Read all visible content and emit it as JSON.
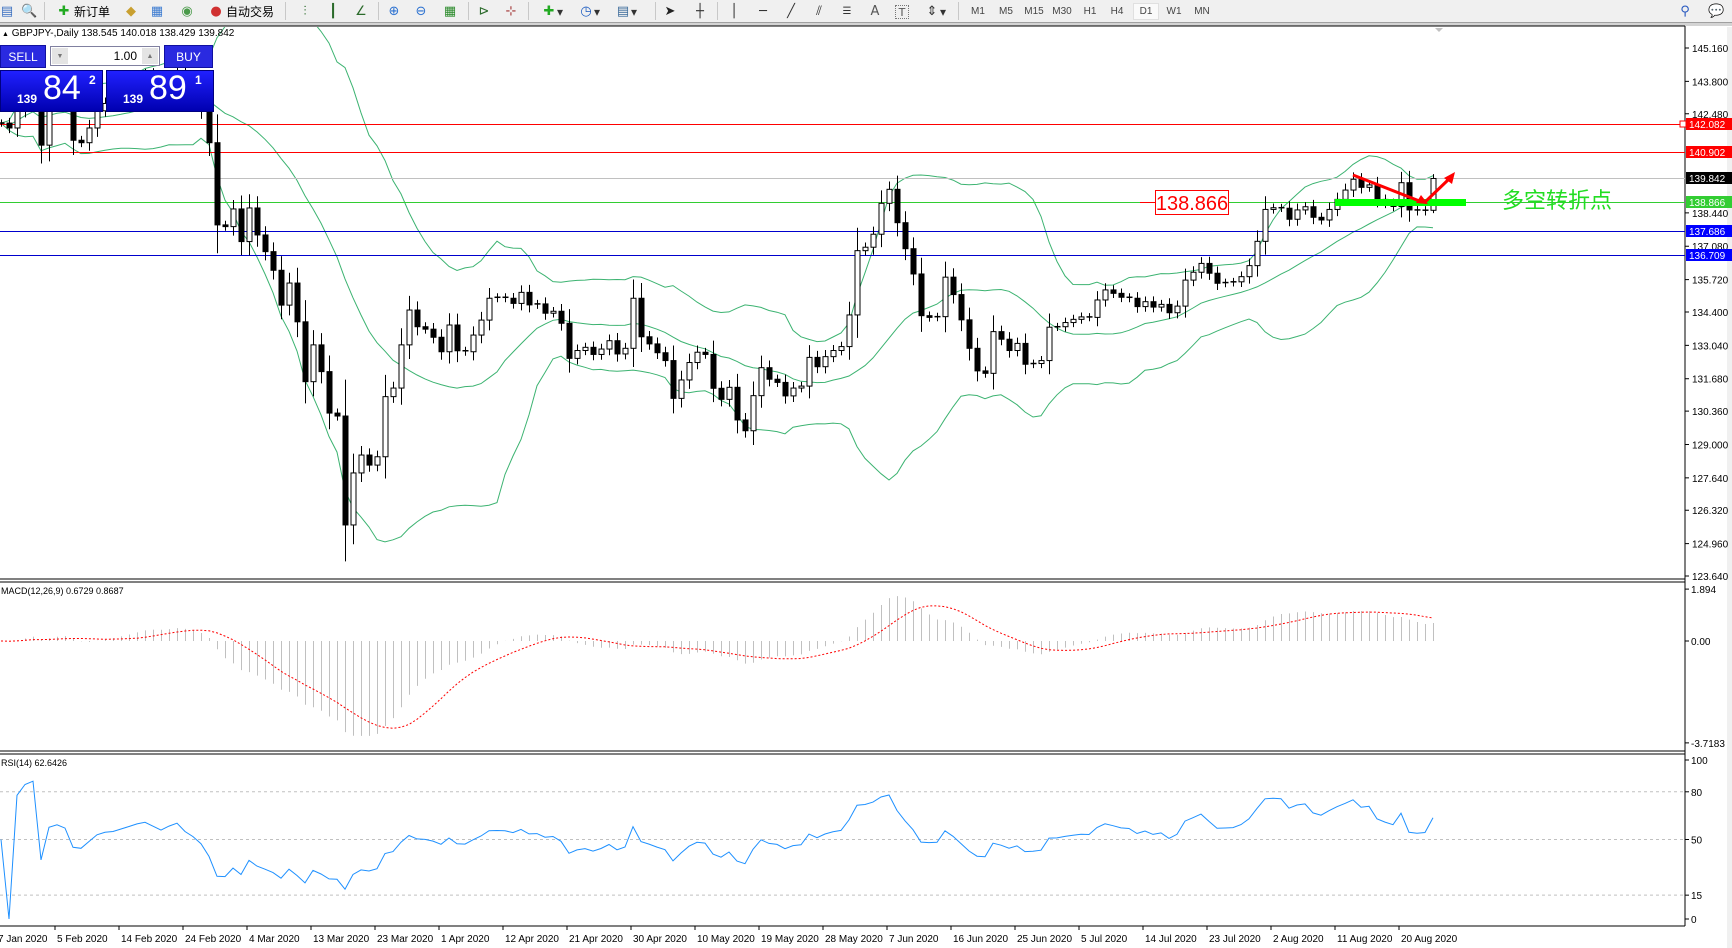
{
  "toolbar": {
    "new_order": "新订单",
    "auto_trading": "自动交易",
    "timeframes": [
      "M1",
      "M5",
      "M15",
      "M30",
      "H1",
      "H4",
      "D1",
      "W1",
      "MN"
    ],
    "active_timeframe": "D1",
    "icons": [
      "new-chart-icon",
      "profiles-icon",
      "new-order-icon",
      "metaeditor-icon",
      "terminal-icon",
      "signals-icon",
      "auto-trading-icon",
      "bar-chart-icon",
      "candlestick-icon",
      "line-chart-icon",
      "zoom-in-icon",
      "zoom-out-icon",
      "tile-windows-icon",
      "autoscroll-icon",
      "chart-shift-icon",
      "indicators-icon",
      "periods-icon",
      "templates-icon",
      "cursor-icon",
      "crosshair-icon",
      "vertical-line-icon",
      "horizontal-line-icon",
      "trendline-icon",
      "equidistant-channel-icon",
      "fibonacci-icon",
      "text-icon",
      "text-label-icon",
      "arrows-icon",
      "search-icon",
      "chat-icon"
    ]
  },
  "chart_header": {
    "symbol": "GBPJPY-,Daily",
    "open": "138.545",
    "high": "140.018",
    "low": "138.429",
    "close": "139.842"
  },
  "trade_panel": {
    "sell_label": "SELL",
    "buy_label": "BUY",
    "lot": "1.00",
    "sell_price": {
      "prefix": "139",
      "pips": "84",
      "fraction": "2"
    },
    "buy_price": {
      "prefix": "139",
      "pips": "89",
      "fraction": "1"
    }
  },
  "chart_data": {
    "type": "candlestick",
    "symbol": "GBPJPY",
    "timeframe": "Daily",
    "close": [
      142.1,
      141.9,
      142.6,
      143.0,
      143.2,
      141.2,
      142.9,
      143.1,
      142.9,
      141.4,
      141.3,
      141.9,
      142.6,
      142.9,
      143.0,
      143.3,
      143.6,
      143.9,
      144.1,
      143.8,
      143.5,
      143.9,
      144.2,
      143.6,
      143.2,
      142.6,
      141.3,
      137.95,
      137.88,
      138.6,
      137.27,
      138.64,
      137.54,
      136.86,
      136.1,
      134.68,
      135.58,
      134.0,
      131.56,
      133.06,
      131.97,
      130.28,
      130.16,
      125.72,
      127.84,
      128.57,
      128.16,
      128.5,
      130.95,
      131.3,
      133.06,
      134.48,
      133.8,
      133.7,
      133.37,
      132.78,
      133.87,
      132.82,
      132.78,
      133.46,
      134.07,
      134.96,
      135.0,
      134.96,
      134.75,
      135.2,
      134.69,
      134.73,
      134.35,
      134.43,
      133.94,
      132.51,
      132.83,
      132.96,
      132.67,
      132.89,
      133.23,
      132.69,
      132.92,
      134.96,
      133.39,
      133.1,
      132.74,
      132.42,
      130.88,
      131.63,
      132.34,
      132.76,
      132.67,
      131.29,
      130.84,
      131.33,
      130.0,
      129.56,
      130.99,
      132.13,
      131.66,
      131.53,
      130.98,
      131.3,
      131.38,
      132.55,
      132.17,
      132.58,
      132.83,
      132.99,
      134.28,
      136.9,
      137.04,
      137.57,
      138.83,
      139.4,
      138.04,
      136.98,
      135.95,
      134.25,
      134.18,
      134.21,
      135.82,
      135.11,
      134.08,
      132.92,
      132.0,
      131.9,
      133.6,
      133.29,
      132.83,
      133.12,
      132.27,
      132.3,
      132.42,
      133.78,
      133.8,
      133.97,
      134.1,
      134.2,
      134.18,
      134.89,
      135.3,
      135.16,
      135.0,
      134.96,
      134.62,
      134.82,
      134.6,
      134.71,
      134.37,
      134.64,
      135.7,
      136.02,
      136.38,
      135.98,
      135.57,
      135.6,
      135.63,
      135.84,
      136.29,
      137.28,
      138.58,
      138.65,
      138.63,
      138.18,
      138.56,
      138.69,
      138.26,
      138.15,
      138.58,
      138.99,
      139.37,
      139.81,
      139.48,
      139.58,
      138.99,
      138.83,
      138.7,
      139.67,
      138.56,
      138.5,
      138.55,
      139.842
    ],
    "price_axis_ticks": [
      "145.160",
      "143.800",
      "142.480",
      "138.440",
      "137.080",
      "135.720",
      "134.400",
      "133.040",
      "131.680",
      "130.360",
      "129.000",
      "127.640",
      "126.320",
      "124.960",
      "123.640"
    ],
    "price_range": [
      123.64,
      145.16
    ],
    "date_labels": [
      "7 Jan 2020",
      "5 Feb 2020",
      "14 Feb 2020",
      "24 Feb 2020",
      "4 Mar 2020",
      "13 Mar 2020",
      "23 Mar 2020",
      "1 Apr 2020",
      "12 Apr 2020",
      "21 Apr 2020",
      "30 Apr 2020",
      "10 May 2020",
      "19 May 2020",
      "28 May 2020",
      "7 Jun 2020",
      "16 Jun 2020",
      "25 Jun 2020",
      "5 Jul 2020",
      "14 Jul 2020",
      "23 Jul 2020",
      "2 Aug 2020",
      "11 Aug 2020",
      "20 Aug 2020"
    ],
    "horizontal_lines": [
      {
        "value": "142.082",
        "color": "#ff0000",
        "label_color": "#ff0000"
      },
      {
        "value": "140.902",
        "color": "#ff0000",
        "label_color": "#ff0000"
      },
      {
        "value": "139.842",
        "color": "#c0c0c0",
        "label_color": "#000000"
      },
      {
        "value": "138.866",
        "color": "#32cd32",
        "label_color": "#32cd32"
      },
      {
        "value": "137.686",
        "color": "#0000cd",
        "label_color": "#0000ff"
      },
      {
        "value": "136.709",
        "color": "#0000cd",
        "label_color": "#0000ff"
      }
    ],
    "annotations": {
      "price_label": "138.866",
      "turning_point_text": "多空转折点",
      "arrow_color": "#ff0000",
      "zone_color": "#00ff00"
    },
    "macd": {
      "label": "MACD(12,26,9) 0.6729 0.8687",
      "ticks": [
        "1.894",
        "0.00",
        "-3.7183"
      ],
      "histogram_color": "#c0c0c0",
      "signal_color": "#ff0000"
    },
    "rsi": {
      "label": "RSI(14) 62.6426",
      "ticks": [
        "100",
        "80",
        "50",
        "15",
        "0"
      ],
      "line_color": "#1e90ff"
    },
    "bands_color": "#3cb371",
    "bull_candle": "#ffffff",
    "bear_candle": "#000000"
  }
}
